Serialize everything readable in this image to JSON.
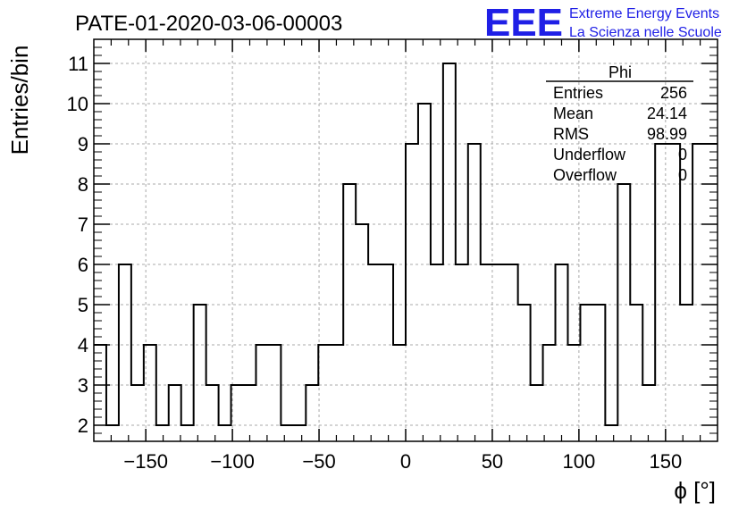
{
  "chart_data": {
    "type": "histogram",
    "title": "PATE-01-2020-03-06-00003",
    "xlabel": "ϕ [°]",
    "ylabel": "Entries/bin",
    "xlim": [
      -180,
      180
    ],
    "ylim": [
      1.6,
      11.6
    ],
    "x_ticks": [
      -150,
      -100,
      -50,
      0,
      50,
      100,
      150
    ],
    "x_tick_labels": [
      "−150",
      "−100",
      "−50",
      "0",
      "50",
      "100",
      "150"
    ],
    "y_ticks": [
      2,
      3,
      4,
      5,
      6,
      7,
      8,
      9,
      10,
      11
    ],
    "y_tick_labels": [
      "2",
      "3",
      "4",
      "5",
      "6",
      "7",
      "8",
      "9",
      "10",
      "11"
    ],
    "grid": true,
    "bin_edges": [
      -180,
      -172.8,
      -165.6,
      -158.4,
      -151.2,
      -144,
      -136.8,
      -129.6,
      -122.4,
      -115.2,
      -108,
      -100.8,
      -93.6,
      -86.4,
      -79.2,
      -72,
      -64.8,
      -57.6,
      -50.4,
      -43.2,
      -36,
      -28.8,
      -21.6,
      -14.4,
      -7.2,
      0,
      7.2,
      14.4,
      21.6,
      28.8,
      36,
      43.2,
      50.4,
      57.6,
      64.8,
      72,
      79.2,
      86.4,
      93.6,
      100.8,
      108,
      115.2,
      122.4,
      129.6,
      136.8,
      144,
      151.2,
      158.4,
      165.6,
      172.8,
      180
    ],
    "values": [
      4,
      2,
      6,
      3,
      4,
      2,
      3,
      2,
      5,
      3,
      2,
      3,
      3,
      4,
      4,
      2,
      2,
      3,
      4,
      4,
      8,
      7,
      6,
      6,
      4,
      9,
      10,
      6,
      11,
      6,
      9,
      6,
      6,
      6,
      5,
      3,
      4,
      6,
      4,
      5,
      5,
      2,
      8,
      5,
      3,
      9,
      9,
      5,
      9,
      9
    ],
    "stats_box": {
      "name": "Phi",
      "rows": [
        {
          "label": "Entries",
          "value": "256"
        },
        {
          "label": "Mean",
          "value": "24.14"
        },
        {
          "label": "RMS",
          "value": "98.99"
        },
        {
          "label": "Underflow",
          "value": "0"
        },
        {
          "label": "Overflow",
          "value": "0"
        }
      ]
    },
    "logo": {
      "mark": "EEE",
      "line1": "Extreme Energy Events",
      "line2": "La Scienza nelle Scuole",
      "color": "#1f1fe6"
    },
    "colors": {
      "line": "#000000",
      "grid": "#a8a8a8",
      "background": "#ffffff"
    }
  }
}
